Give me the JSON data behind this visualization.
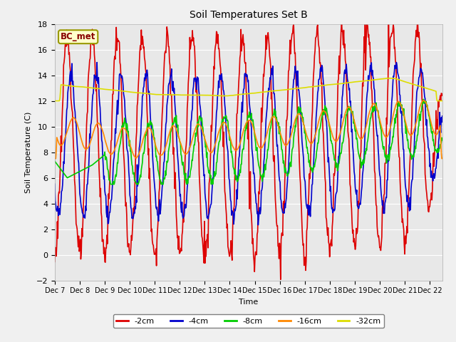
{
  "title": "Soil Temperatures Set B",
  "xlabel": "Time",
  "ylabel": "Soil Temperature (C)",
  "ylim": [
    -2,
    18
  ],
  "annotation": "BC_met",
  "legend_labels": [
    "-2cm",
    "-4cm",
    "-8cm",
    "-16cm",
    "-32cm"
  ],
  "legend_colors": [
    "#dd0000",
    "#0000cc",
    "#00cc00",
    "#ff8800",
    "#dddd00"
  ],
  "bg_color": "#e8e8e8",
  "fig_bg": "#f0f0f0",
  "xtick_labels": [
    "Dec 7",
    "Dec 8",
    "Dec 9",
    "Dec 10",
    "Dec 11",
    "Dec 12",
    "Dec 13",
    "Dec 14",
    "Dec 15",
    "Dec 16",
    "Dec 17",
    "Dec 18",
    "Dec 19",
    "Dec 20",
    "Dec 21",
    "Dec 22"
  ],
  "n_days": 15.5,
  "n_points": 744
}
